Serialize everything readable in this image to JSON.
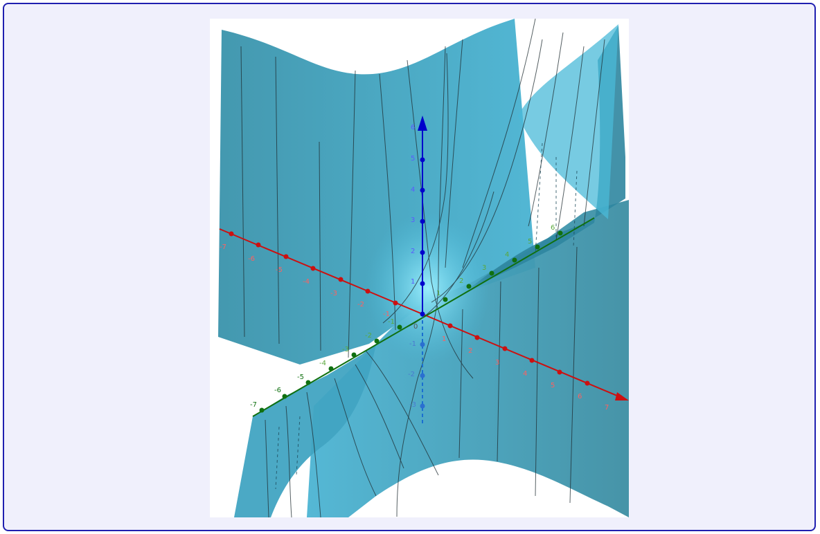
{
  "figure": {
    "description_free": true,
    "colors": {
      "frame_border": "#1f1fb0",
      "frame_background": "#f0f0fc",
      "surface": "#3aa8c8",
      "x_axis": "#cc1010",
      "y_axis": "#107010",
      "z_axis": "#0000cc"
    },
    "x_axis_labels": [
      "-7",
      "-6",
      "-5",
      "-4",
      "-3",
      "-2",
      "-1",
      "1",
      "2",
      "3",
      "4",
      "5",
      "6",
      "7"
    ],
    "y_axis_labels": [
      "-7",
      "-6",
      "-5",
      "-4",
      "-3",
      "-2",
      "-1",
      "1",
      "2",
      "3",
      "4",
      "5",
      "6"
    ],
    "z_axis_labels": [
      "6",
      "5",
      "4",
      "3",
      "2",
      "1",
      "-1",
      "-2",
      "-3"
    ],
    "origin_label": "0"
  }
}
